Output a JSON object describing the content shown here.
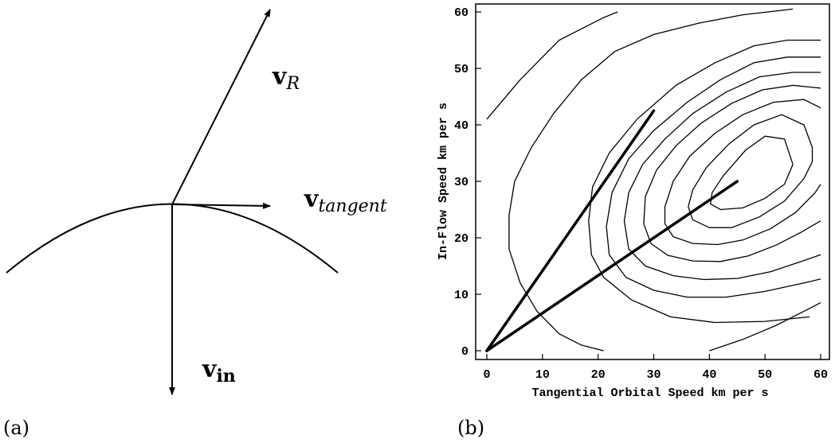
{
  "panel_a": {
    "label": "(a)",
    "vectors": {
      "v_r": {
        "main": "v",
        "subscript": "R"
      },
      "v_tangent": {
        "main": "v",
        "subscript": "tangent"
      },
      "v_in": {
        "main": "v",
        "subscript": "in"
      }
    }
  },
  "panel_b": {
    "label": "(b)"
  },
  "chart_data": {
    "type": "contour",
    "xlabel": "Tangential Orbital Speed km per s",
    "ylabel": "In-Flow Speed km per s",
    "xlim": [
      -2,
      62
    ],
    "ylim": [
      -2,
      62
    ],
    "x_ticks": [
      0,
      10,
      20,
      30,
      40,
      50,
      60
    ],
    "y_ticks": [
      0,
      10,
      20,
      30,
      40,
      50,
      60
    ],
    "contours": [
      [
        [
          21,
          0
        ],
        [
          17,
          1
        ],
        [
          13,
          3
        ],
        [
          9,
          7
        ],
        [
          6,
          12
        ],
        [
          4,
          18
        ],
        [
          4,
          24
        ],
        [
          5,
          30
        ],
        [
          8,
          36
        ],
        [
          12,
          42
        ],
        [
          17,
          48
        ],
        [
          23,
          53
        ],
        [
          30,
          56
        ],
        [
          38,
          58
        ],
        [
          46,
          59.5
        ],
        [
          55,
          60.5
        ]
      ],
      [
        [
          0,
          41
        ],
        [
          6,
          48
        ],
        [
          13,
          55
        ],
        [
          21,
          59
        ],
        [
          23.5,
          60
        ]
      ],
      [
        [
          60,
          55
        ],
        [
          54,
          55
        ],
        [
          48,
          54
        ],
        [
          41,
          51
        ],
        [
          34,
          47
        ],
        [
          27,
          41
        ],
        [
          22,
          35
        ],
        [
          19,
          29
        ],
        [
          18.3,
          23
        ],
        [
          18.8,
          17
        ],
        [
          21,
          13
        ],
        [
          26,
          9
        ],
        [
          33,
          6
        ],
        [
          41,
          5
        ],
        [
          50,
          5.2
        ],
        [
          58,
          6
        ]
      ],
      [
        [
          60,
          52
        ],
        [
          54,
          52
        ],
        [
          48,
          51
        ],
        [
          42,
          48
        ],
        [
          36,
          44
        ],
        [
          30,
          39
        ],
        [
          25.5,
          34
        ],
        [
          22.5,
          28
        ],
        [
          21.5,
          22
        ],
        [
          22,
          17
        ],
        [
          25,
          13
        ],
        [
          30,
          10.7
        ],
        [
          36,
          9.5
        ],
        [
          43,
          9.5
        ],
        [
          50,
          10.5
        ],
        [
          57,
          12
        ],
        [
          60,
          12.7
        ]
      ],
      [
        [
          60,
          49.3
        ],
        [
          55,
          49.3
        ],
        [
          49,
          48.5
        ],
        [
          43,
          45.8
        ],
        [
          37,
          42
        ],
        [
          32,
          37.5
        ],
        [
          28,
          33
        ],
        [
          25.5,
          28
        ],
        [
          24.7,
          23
        ],
        [
          25.5,
          18
        ],
        [
          28.5,
          15
        ],
        [
          33.5,
          13.3
        ],
        [
          39,
          12.6
        ],
        [
          45,
          12.8
        ],
        [
          51,
          14
        ],
        [
          56.5,
          15.8
        ],
        [
          60,
          17
        ]
      ],
      [
        [
          60,
          46.5
        ],
        [
          55,
          47
        ],
        [
          49.5,
          46.2
        ],
        [
          44,
          43.8
        ],
        [
          38.5,
          40.3
        ],
        [
          34,
          36.3
        ],
        [
          30.5,
          32
        ],
        [
          28.5,
          27.3
        ],
        [
          28.2,
          22.5
        ],
        [
          29.5,
          19
        ],
        [
          32.5,
          16.9
        ],
        [
          37,
          15.9
        ],
        [
          42,
          15.8
        ],
        [
          47,
          16.8
        ],
        [
          52,
          18.7
        ],
        [
          56.5,
          21
        ],
        [
          60,
          23
        ]
      ],
      [
        [
          60,
          43
        ],
        [
          57,
          44.5
        ],
        [
          51.5,
          44
        ],
        [
          46,
          41.8
        ],
        [
          41,
          38.5
        ],
        [
          36.5,
          34.5
        ],
        [
          33.5,
          30
        ],
        [
          32,
          25.5
        ],
        [
          32,
          22.5
        ],
        [
          33.5,
          20.2
        ],
        [
          37,
          19
        ],
        [
          41.5,
          18.8
        ],
        [
          46,
          19.6
        ],
        [
          51,
          21.6
        ],
        [
          55.5,
          24.5
        ],
        [
          59,
          28
        ],
        [
          60,
          29.5
        ]
      ],
      [
        [
          58.5,
          36
        ],
        [
          57,
          40
        ],
        [
          53,
          41.8
        ],
        [
          48,
          40
        ],
        [
          43.5,
          36.6
        ],
        [
          39.5,
          32.5
        ],
        [
          37,
          28.5
        ],
        [
          36.2,
          25.5
        ],
        [
          37,
          23.2
        ],
        [
          40,
          21.8
        ],
        [
          44,
          21.8
        ],
        [
          49,
          23.7
        ],
        [
          53.5,
          26.5
        ],
        [
          57,
          30.5
        ],
        [
          58.5,
          33.5
        ],
        [
          58.5,
          36
        ]
      ],
      [
        [
          55,
          33
        ],
        [
          53.5,
          37.5
        ],
        [
          50,
          38
        ],
        [
          46.5,
          35.5
        ],
        [
          42.5,
          31
        ],
        [
          40.5,
          28
        ],
        [
          40.2,
          26
        ],
        [
          42,
          25
        ],
        [
          46,
          25.3
        ],
        [
          50,
          27
        ],
        [
          53.5,
          29.5
        ],
        [
          55,
          33
        ]
      ],
      [
        [
          40,
          0
        ],
        [
          46,
          2
        ],
        [
          52,
          4.5
        ],
        [
          58,
          7.5
        ],
        [
          60,
          8.5
        ]
      ]
    ],
    "bold_lines": [
      [
        [
          0,
          0
        ],
        [
          30,
          42.5
        ]
      ],
      [
        [
          0,
          0
        ],
        [
          45,
          30
        ]
      ]
    ]
  }
}
